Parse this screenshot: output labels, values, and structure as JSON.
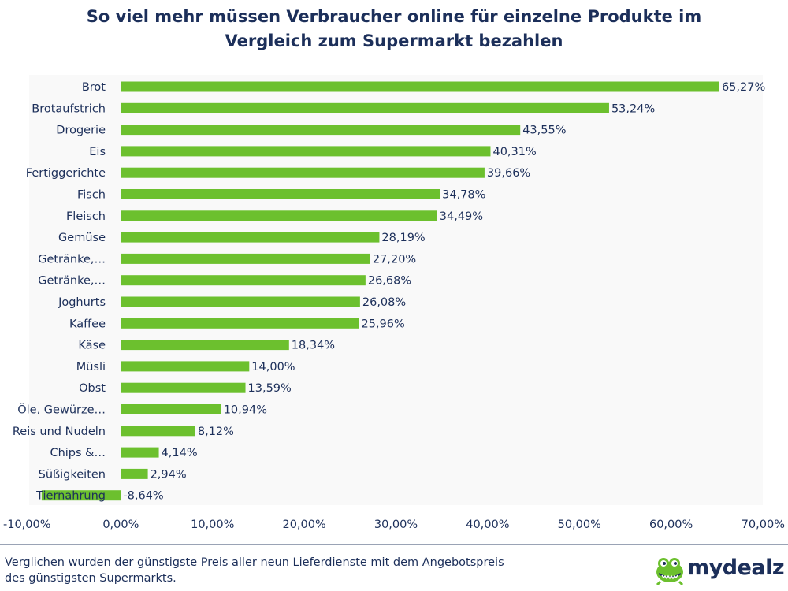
{
  "title_lines": [
    "So viel mehr müssen Verbraucher online für einzelne Produkte im",
    "Vergleich zum Supermarkt bezahlen"
  ],
  "footnote_lines": [
    "Verglichen wurden der günstigste Preis aller neun Lieferdienste mit dem Angebotspreis",
    "des günstigsten Supermarkts."
  ],
  "logo": {
    "text": "mydealz",
    "icon": "crocodile-mascot-icon"
  },
  "colors": {
    "bar": "#6cc02e",
    "text": "#1c2f5a",
    "plot_bg": "#f9f9f9"
  },
  "chart_data": {
    "type": "bar",
    "orientation": "horizontal",
    "title": "So viel mehr müssen Verbraucher online für einzelne Produkte im Vergleich zum Supermarkt bezahlen",
    "xlabel": "",
    "ylabel": "",
    "xlim": [
      -10,
      70
    ],
    "xticks": [
      -10,
      0,
      10,
      20,
      30,
      40,
      50,
      60,
      70
    ],
    "xtick_labels": [
      "-10,00%",
      "0,00%",
      "10,00%",
      "20,00%",
      "30,00%",
      "40,00%",
      "50,00%",
      "60,00%",
      "70,00%"
    ],
    "grid": false,
    "legend": "none",
    "categories": [
      "Brot",
      "Brotaufstrich",
      "Drogerie",
      "Eis",
      "Fertiggerichte",
      "Fisch",
      "Fleisch",
      "Gemüse",
      "Getränke,…",
      "Getränke,…",
      "Joghurts",
      "Kaffee",
      "Käse",
      "Müsli",
      "Obst",
      "Öle, Gewürze…",
      "Reis und Nudeln",
      "Chips &…",
      "Süßigkeiten",
      "Tiernahrung"
    ],
    "values": [
      65.27,
      53.24,
      43.55,
      40.31,
      39.66,
      34.78,
      34.49,
      28.19,
      27.2,
      26.68,
      26.08,
      25.96,
      18.34,
      14.0,
      13.59,
      10.94,
      8.12,
      4.14,
      2.94,
      -8.64
    ],
    "value_labels": [
      "65,27%",
      "53,24%",
      "43,55%",
      "40,31%",
      "39,66%",
      "34,78%",
      "34,49%",
      "28,19%",
      "27,20%",
      "26,68%",
      "26,08%",
      "25,96%",
      "18,34%",
      "14,00%",
      "13,59%",
      "10,94%",
      "8,12%",
      "4,14%",
      "2,94%",
      "-8,64%"
    ]
  }
}
